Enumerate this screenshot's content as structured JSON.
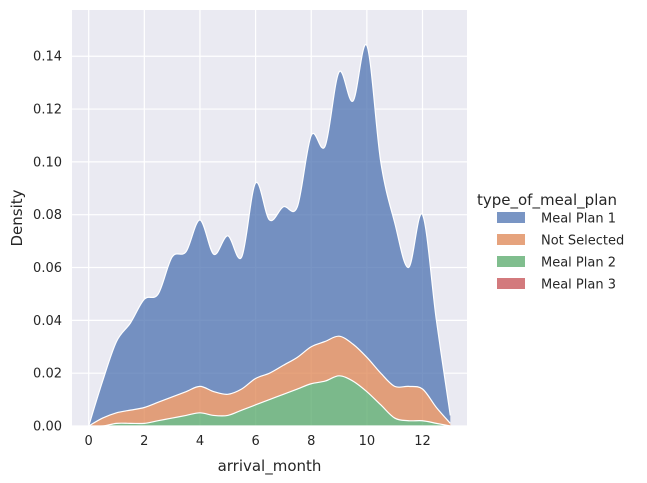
{
  "chart_data": {
    "type": "area",
    "stacked": true,
    "title": "",
    "xlabel": "arrival_month",
    "ylabel": "Density",
    "xlim": [
      -0.6,
      13.6
    ],
    "ylim": [
      0,
      0.1575
    ],
    "xticks": [
      0,
      2,
      4,
      6,
      8,
      10,
      12
    ],
    "yticks": [
      0.0,
      0.02,
      0.04,
      0.06,
      0.08,
      0.1,
      0.12,
      0.14
    ],
    "ytick_labels": [
      "0.00",
      "0.02",
      "0.04",
      "0.06",
      "0.08",
      "0.10",
      "0.12",
      "0.14"
    ],
    "grid": true,
    "background": "#EAEAF2",
    "legend": {
      "title": "type_of_meal_plan",
      "placement": "right"
    },
    "x": [
      0,
      0.5,
      1,
      1.5,
      2,
      2.5,
      3,
      3.5,
      4,
      4.5,
      5,
      5.5,
      6,
      6.5,
      7,
      7.5,
      8,
      8.5,
      9,
      9.5,
      10,
      10.5,
      11,
      11.5,
      12,
      12.5,
      13
    ],
    "series": [
      {
        "name": "Meal Plan 1",
        "color": "#4C72B0",
        "values": [
          0.0,
          0.014,
          0.027,
          0.033,
          0.041,
          0.041,
          0.053,
          0.053,
          0.063,
          0.052,
          0.06,
          0.05,
          0.074,
          0.058,
          0.06,
          0.057,
          0.08,
          0.074,
          0.1,
          0.092,
          0.118,
          0.08,
          0.062,
          0.045,
          0.066,
          0.033,
          0.003
        ]
      },
      {
        "name": "Not Selected",
        "color": "#DD8452",
        "values": [
          0.0,
          0.003,
          0.004,
          0.005,
          0.006,
          0.007,
          0.008,
          0.009,
          0.01,
          0.009,
          0.008,
          0.008,
          0.01,
          0.01,
          0.011,
          0.012,
          0.014,
          0.015,
          0.015,
          0.014,
          0.013,
          0.012,
          0.012,
          0.013,
          0.012,
          0.006,
          0.001
        ]
      },
      {
        "name": "Meal Plan 2",
        "color": "#55A868",
        "values": [
          0.0,
          0.0,
          0.001,
          0.001,
          0.001,
          0.002,
          0.003,
          0.004,
          0.005,
          0.004,
          0.004,
          0.006,
          0.008,
          0.01,
          0.012,
          0.014,
          0.016,
          0.017,
          0.019,
          0.017,
          0.013,
          0.008,
          0.003,
          0.002,
          0.002,
          0.001,
          0.0
        ]
      },
      {
        "name": "Meal Plan 3",
        "color": "#C44E52",
        "values": [
          0.0,
          0.0,
          0.0,
          0.0,
          0.0,
          0.0,
          0.0,
          0.0,
          0.0,
          0.0,
          0.0,
          0.0,
          0.0,
          0.0,
          0.0,
          0.0,
          0.0,
          0.0,
          0.0,
          0.0,
          0.0,
          0.0,
          0.0,
          0.0,
          0.0,
          0.0,
          0.0
        ]
      }
    ]
  }
}
